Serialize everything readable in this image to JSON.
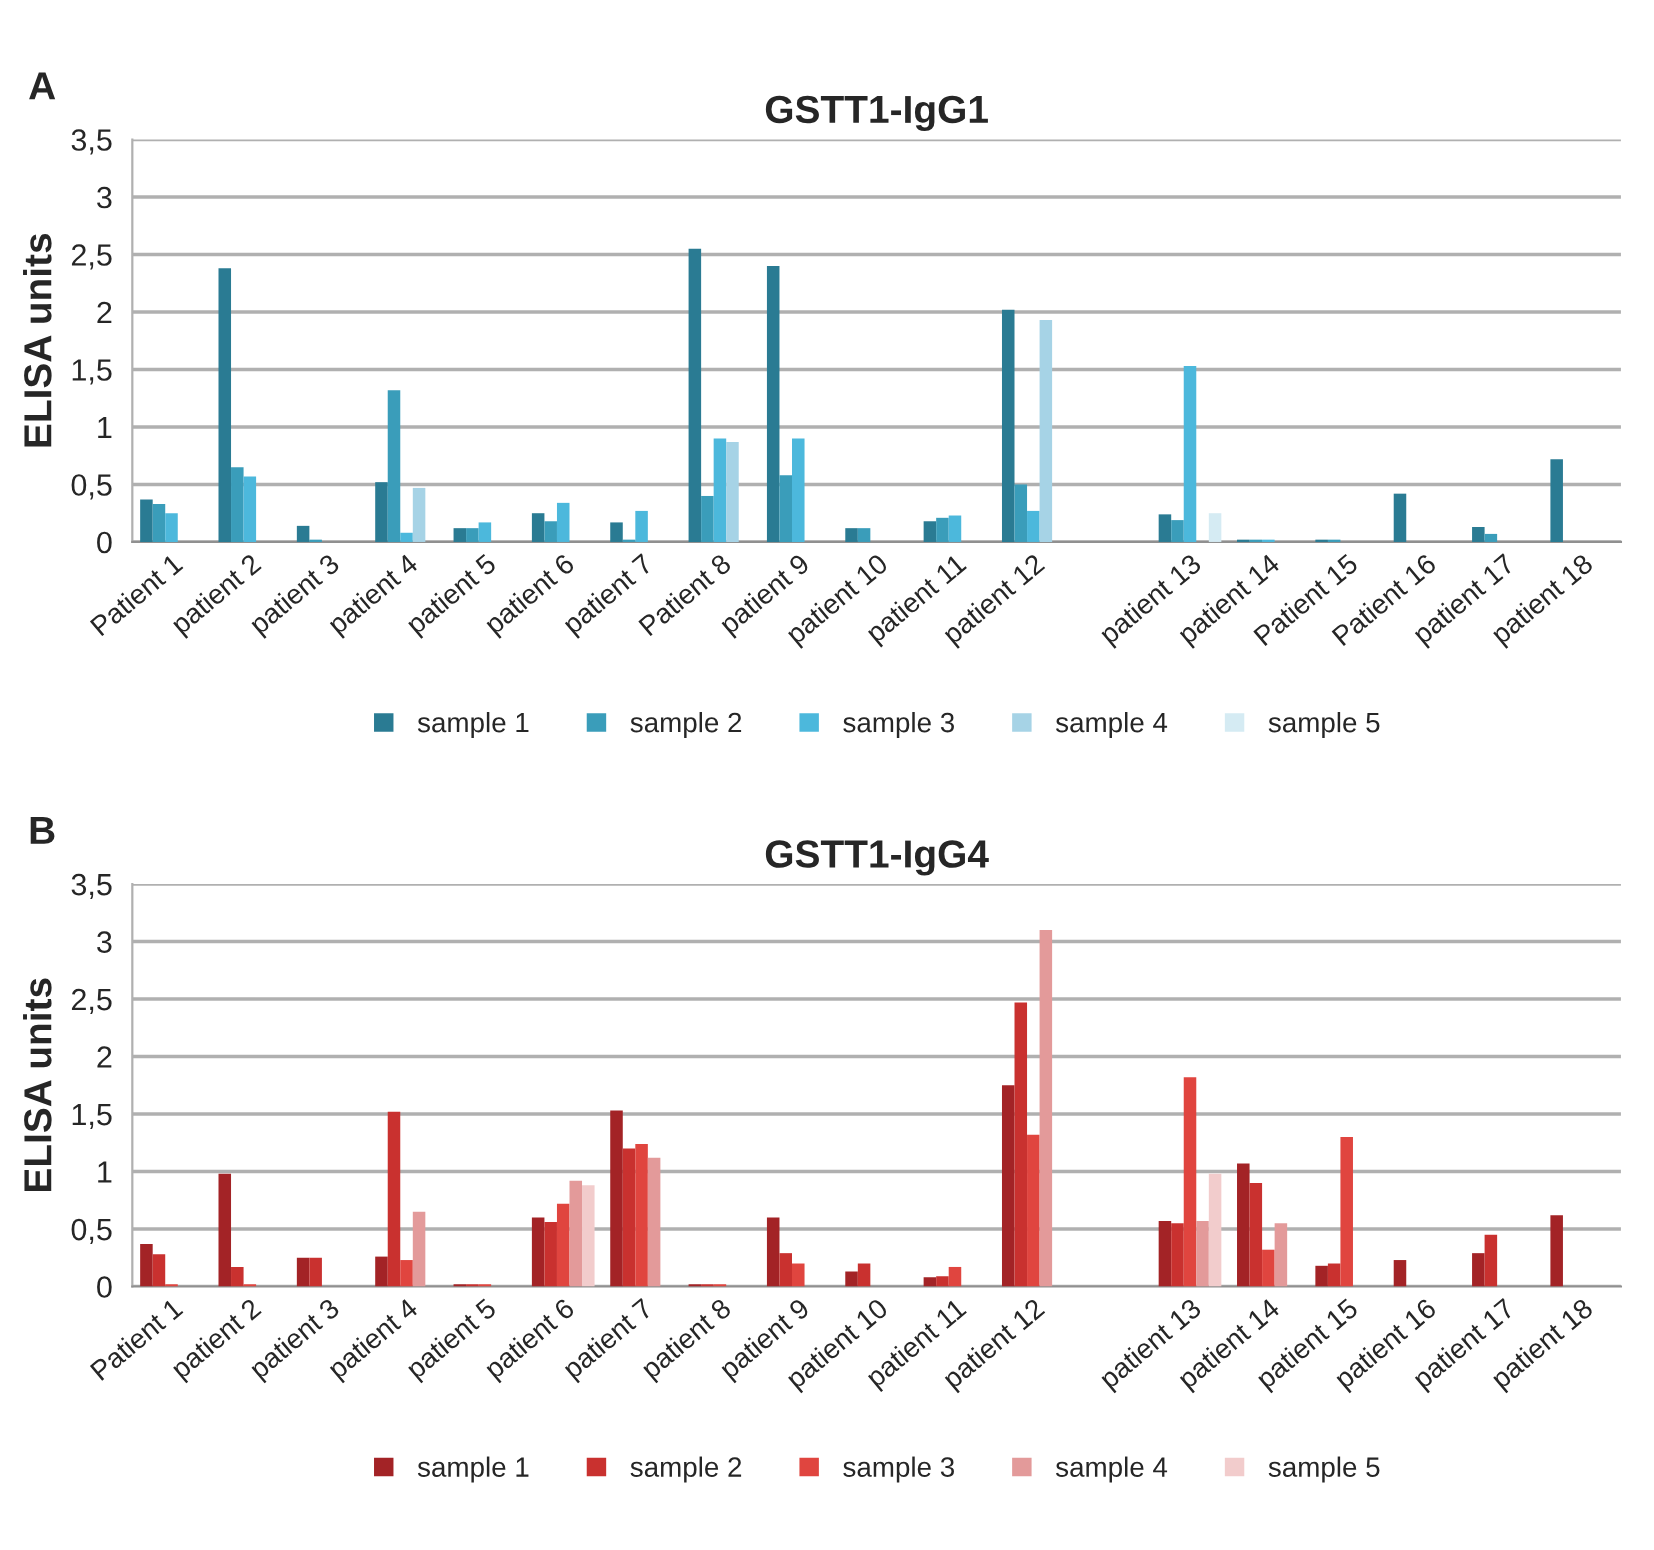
{
  "chart_data": [
    {
      "type": "bar",
      "title": "GSTT1-IgG1",
      "ylabel": "ELISA units",
      "annotations": [
        "A"
      ],
      "categories": [
        "Patient 1",
        "patient 2",
        "patient 3",
        "patient 4",
        "patient 5",
        "patient 6",
        "patient 7",
        "Patient 8",
        "patient 9",
        "patient 10",
        "patient 11",
        "patient 12",
        null,
        "patient 13",
        "patient 14",
        "Patient 15",
        "Patient 16",
        "patient 17",
        "patient 18"
      ],
      "series": [
        {
          "name": "sample 1",
          "color": "#2a7b93",
          "values": [
            0.37,
            2.38,
            0.14,
            0.52,
            0.12,
            0.25,
            0.17,
            2.55,
            2.4,
            0.12,
            0.18,
            2.02,
            null,
            0.24,
            0.02,
            0.02,
            0.42,
            0.13,
            0.72
          ]
        },
        {
          "name": "sample 2",
          "color": "#3a9dba",
          "values": [
            0.33,
            0.65,
            0.02,
            1.32,
            0.12,
            0.18,
            0.02,
            0.4,
            0.58,
            0.12,
            0.21,
            0.5,
            null,
            0.19,
            0.02,
            0.02,
            null,
            0.07,
            null
          ]
        },
        {
          "name": "sample 3",
          "color": "#4cb8dc",
          "values": [
            0.25,
            0.57,
            null,
            0.08,
            0.17,
            0.34,
            0.27,
            0.9,
            0.9,
            null,
            0.23,
            0.27,
            null,
            1.53,
            0.02,
            null,
            null,
            null,
            null
          ]
        },
        {
          "name": "sample 4",
          "color": "#a6d3e6",
          "values": [
            null,
            null,
            null,
            0.47,
            null,
            null,
            null,
            0.87,
            null,
            null,
            null,
            1.93,
            null,
            null,
            null,
            null,
            null,
            null,
            null
          ]
        },
        {
          "name": "sample 5",
          "color": "#d5ebf3",
          "values": [
            null,
            null,
            null,
            null,
            null,
            null,
            null,
            null,
            null,
            null,
            null,
            null,
            null,
            0.25,
            null,
            null,
            null,
            null,
            null
          ]
        }
      ],
      "ylim": [
        0,
        3.5
      ],
      "yticks": [
        0,
        {
          "value": 0.5,
          "label": "0,5"
        },
        1,
        {
          "value": 1.5,
          "label": "1,5"
        },
        2,
        {
          "value": 2.5,
          "label": "2,5"
        },
        3,
        {
          "value": 3.5,
          "label": "3,5"
        }
      ],
      "grid": "y",
      "legend": "bottom"
    },
    {
      "type": "bar",
      "title": "GSTT1-IgG4",
      "ylabel": "ELISA units",
      "annotations": [
        "B"
      ],
      "categories": [
        "Patient 1",
        "patient 2",
        "patient 3",
        "patient 4",
        "patient 5",
        "patient 6",
        "patient 7",
        "patient 8",
        "patient 9",
        "patient 10",
        "patient 11",
        "patient 12",
        null,
        "patient 13",
        "patient 14",
        "patient 15",
        "patient 16",
        "patient 17",
        "patient 18"
      ],
      "series": [
        {
          "name": "sample 1",
          "color": "#a32326",
          "values": [
            0.37,
            0.98,
            0.25,
            0.26,
            0.02,
            0.6,
            1.53,
            0.02,
            0.6,
            0.13,
            0.08,
            1.75,
            null,
            0.57,
            1.07,
            0.18,
            0.23,
            0.29,
            0.62
          ]
        },
        {
          "name": "sample 2",
          "color": "#c9312f",
          "values": [
            0.28,
            0.17,
            0.25,
            1.52,
            0.02,
            0.56,
            1.2,
            0.02,
            0.29,
            0.2,
            0.09,
            2.47,
            null,
            0.55,
            0.9,
            0.2,
            null,
            0.45,
            null
          ]
        },
        {
          "name": "sample 3",
          "color": "#e0453f",
          "values": [
            0.02,
            0.02,
            null,
            0.23,
            0.02,
            0.72,
            1.24,
            0.02,
            0.2,
            null,
            0.17,
            1.32,
            null,
            1.82,
            0.32,
            1.3,
            null,
            null,
            null
          ]
        },
        {
          "name": "sample 4",
          "color": "#e39a9a",
          "values": [
            null,
            null,
            null,
            0.65,
            null,
            0.92,
            1.12,
            null,
            null,
            null,
            null,
            3.1,
            null,
            0.57,
            0.55,
            null,
            null,
            null,
            null
          ]
        },
        {
          "name": "sample 5",
          "color": "#f2cccc",
          "values": [
            null,
            null,
            null,
            null,
            null,
            0.88,
            null,
            null,
            null,
            null,
            null,
            null,
            null,
            0.98,
            null,
            null,
            null,
            null,
            null
          ]
        }
      ],
      "ylim": [
        0,
        3.5
      ],
      "yticks": [
        0,
        {
          "value": 0.5,
          "label": "0,5"
        },
        1,
        {
          "value": 1.5,
          "label": "1,5"
        },
        2,
        {
          "value": 2.5,
          "label": "2,5"
        },
        3,
        {
          "value": 3.5,
          "label": "3,5"
        }
      ],
      "grid": "y",
      "legend": "bottom"
    }
  ]
}
